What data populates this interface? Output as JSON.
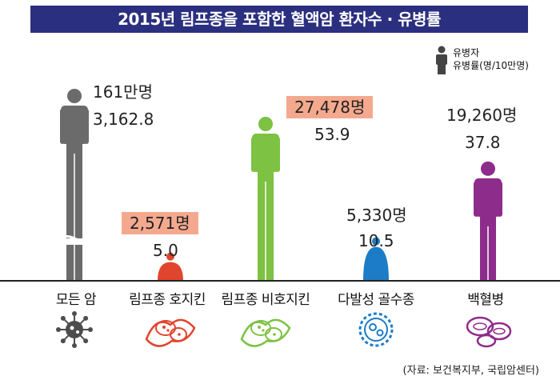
{
  "title": "2015년 림프종을 포함한 혈액암 환자수 · 유병률",
  "legend": {
    "line1": "유병자",
    "line2": "유병률(명/10만명)",
    "icon": "person-icon"
  },
  "source": "(자료: 보건복지부, 국립암센터)",
  "labels": [
    {
      "count": "161만명",
      "rate": "3,162.8"
    },
    {
      "count": "2,571명",
      "rate": "5.0"
    },
    {
      "count": "27,478명",
      "rate": "53.9"
    },
    {
      "count": "5,330명",
      "rate": "10.5"
    },
    {
      "count": "19,260명",
      "rate": "37.8"
    }
  ],
  "chart_data": {
    "type": "bar",
    "title": "2015년 림프종을 포함한 혈액암 환자수 · 유병률",
    "categories": [
      "모든 암",
      "림프종 호지킨",
      "림프종 비호지킨",
      "다발성 골수종",
      "백혈병"
    ],
    "series": [
      {
        "name": "유병자",
        "values": [
          1610000,
          2571,
          27478,
          5330,
          19260
        ]
      },
      {
        "name": "유병률(명/10만명)",
        "values": [
          3162.8,
          5.0,
          53.9,
          10.5,
          37.8
        ]
      }
    ],
    "axis_break": true,
    "colors": [
      "#6b6b6b",
      "#e0452d",
      "#7dc242",
      "#1c7cc7",
      "#8e2c8c"
    ],
    "highlight_color": "#f4a98e",
    "category_icons": [
      "virus-icon",
      "lymphoma-cell-icon",
      "lymphoma-cell-icon",
      "myeloma-cell-icon",
      "leukemia-cell-icon"
    ]
  }
}
